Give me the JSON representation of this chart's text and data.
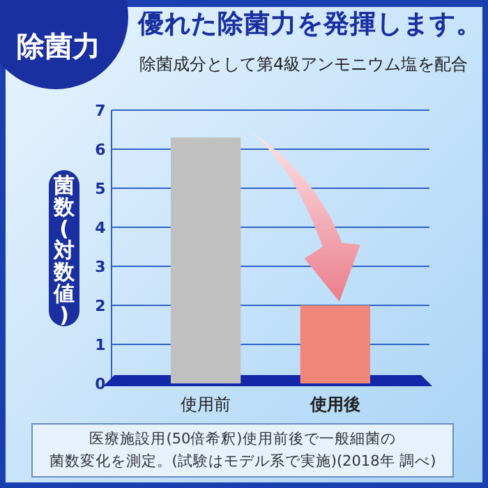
{
  "chart_data": {
    "type": "bar",
    "title": "除菌力",
    "subtitle": "優れた除菌力を発揮します。",
    "annotations": [
      "除菌成分として第4級アンモニウム塩を配合",
      "医療施設用(50倍希釈)使用前後で一般細菌の菌数変化を測定。(試験はモデル系で実施)(2018年 調べ)"
    ],
    "ylabel": "菌数(対数値)",
    "categories": [
      "使用前",
      "使用後"
    ],
    "values": [
      6.3,
      2.0
    ],
    "colors": [
      "#c0c0c0",
      "#f0857a"
    ],
    "ylim": [
      0,
      7
    ],
    "yticks": [
      0,
      1,
      2,
      3,
      4,
      5,
      6,
      7
    ],
    "grid": "y"
  }
}
